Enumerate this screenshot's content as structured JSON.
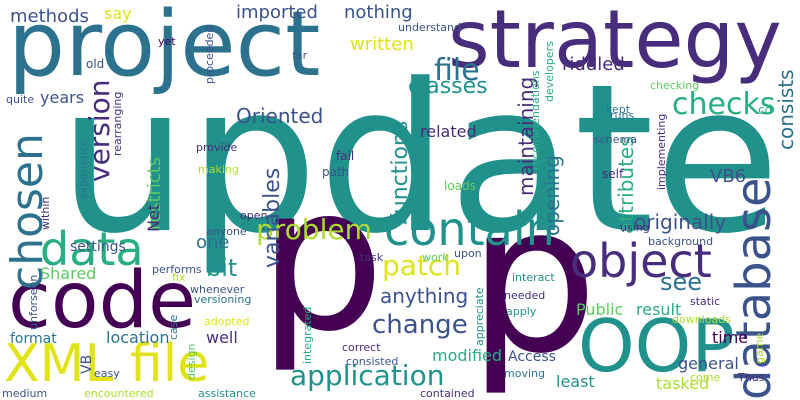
{
  "palette": [
    "#440154",
    "#472d7b",
    "#3b528b",
    "#2c728e",
    "#21918c",
    "#28ae80",
    "#5ec962",
    "#addc30",
    "#fde725"
  ],
  "words": [
    {
      "text": "update",
      "color": "#21918c"
    },
    {
      "text": "p",
      "color": "#440154"
    },
    {
      "text": "p",
      "color": "#440154"
    },
    {
      "text": "project",
      "color": "#2c728e"
    },
    {
      "text": "strategy",
      "color": "#472d7b"
    },
    {
      "text": "code",
      "color": "#440154"
    },
    {
      "text": "XML file",
      "color": "#dfe318"
    },
    {
      "text": "OOP",
      "color": "#21918c"
    },
    {
      "text": "database",
      "color": "#3b528b"
    },
    {
      "text": "contain",
      "color": "#21918c"
    },
    {
      "text": "object",
      "color": "#472d7b"
    },
    {
      "text": "chosen",
      "color": "#2c728e"
    },
    {
      "text": "data",
      "color": "#28ae80"
    },
    {
      "text": "application",
      "color": "#21918c"
    },
    {
      "text": "patch",
      "color": "#dfe318"
    },
    {
      "text": "change",
      "color": "#3b528b"
    },
    {
      "text": "problem",
      "color": "#addc30"
    },
    {
      "text": "version",
      "color": "#472d7b"
    },
    {
      "text": "checks",
      "color": "#28ae80"
    },
    {
      "text": "file",
      "color": "#2c728e"
    },
    {
      "text": "classes",
      "color": "#21918c"
    },
    {
      "text": "variables",
      "color": "#3b528b"
    },
    {
      "text": "functions",
      "color": "#21918c"
    },
    {
      "text": "anything",
      "color": "#3b528b"
    },
    {
      "text": "bit",
      "color": "#21918c"
    },
    {
      "text": "see",
      "color": "#2c728e"
    },
    {
      "text": "originally",
      "color": "#3b528b"
    },
    {
      "text": "maintaining",
      "color": "#472d7b"
    },
    {
      "text": "opening",
      "color": "#2c728e"
    },
    {
      "text": "attributes",
      "color": "#28ae80"
    },
    {
      "text": "consists",
      "color": "#2c728e"
    },
    {
      "text": "Oriented",
      "color": "#3b528b"
    },
    {
      "text": "riddled",
      "color": "#472d7b"
    },
    {
      "text": "written",
      "color": "#dfe318"
    },
    {
      "text": "imported",
      "color": "#3b528b"
    },
    {
      "text": "nothing",
      "color": "#3b528b"
    },
    {
      "text": "methods",
      "color": "#3b528b"
    },
    {
      "text": "say",
      "color": "#dfe318"
    },
    {
      "text": "years",
      "color": "#3b528b"
    },
    {
      "text": "restricts",
      "color": "#5ec962"
    },
    {
      "text": "Net",
      "color": "#472d7b"
    },
    {
      "text": "Shared",
      "color": "#5ec962"
    },
    {
      "text": "settings",
      "color": "#3b528b"
    },
    {
      "text": "one",
      "color": "#2c728e"
    },
    {
      "text": "VB6",
      "color": "#3b528b"
    },
    {
      "text": "related",
      "color": "#472d7b"
    },
    {
      "text": "Public",
      "color": "#5ec962"
    },
    {
      "text": "result",
      "color": "#28ae80"
    },
    {
      "text": "time",
      "color": "#440154"
    },
    {
      "text": "general",
      "color": "#3b528b"
    },
    {
      "text": "tasked",
      "color": "#addc30"
    },
    {
      "text": "least",
      "color": "#21918c"
    },
    {
      "text": "modified",
      "color": "#28ae80"
    },
    {
      "text": "Access",
      "color": "#3b528b"
    },
    {
      "text": "location",
      "color": "#2c728e"
    },
    {
      "text": "well",
      "color": "#472d7b"
    },
    {
      "text": "format",
      "color": "#2c728e"
    },
    {
      "text": "VB",
      "color": "#3b528b"
    },
    {
      "text": "fail",
      "color": "#472d7b"
    },
    {
      "text": "path",
      "color": "#3b528b"
    },
    {
      "text": "loads",
      "color": "#5ec962"
    },
    {
      "text": "self",
      "color": "#472d7b"
    },
    {
      "text": "schema",
      "color": "#3b528b"
    },
    {
      "text": "kept",
      "color": "#2c728e"
    },
    {
      "text": "cd",
      "color": "#28ae80"
    },
    {
      "text": "using",
      "color": "#472d7b"
    },
    {
      "text": "background",
      "color": "#3b528b"
    },
    {
      "text": "checking",
      "color": "#5ec962"
    },
    {
      "text": "implementing",
      "color": "#472d7b"
    },
    {
      "text": "runs",
      "color": "#2c728e"
    },
    {
      "text": "developers",
      "color": "#28ae80"
    },
    {
      "text": "recommendations",
      "color": "#28ae80"
    },
    {
      "text": "understand",
      "color": "#3b528b"
    },
    {
      "text": "far",
      "color": "#3b528b"
    },
    {
      "text": "yet",
      "color": "#440154"
    },
    {
      "text": "old",
      "color": "#3b528b"
    },
    {
      "text": "quite",
      "color": "#3b528b"
    },
    {
      "text": "rearranging",
      "color": "#472d7b"
    },
    {
      "text": "experience",
      "color": "#2c728e"
    },
    {
      "text": "within",
      "color": "#472d7b"
    },
    {
      "text": "proceeded",
      "color": "#3b528b"
    },
    {
      "text": "provide",
      "color": "#472d7b"
    },
    {
      "text": "making",
      "color": "#addc30"
    },
    {
      "text": "open",
      "color": "#472d7b"
    },
    {
      "text": "anyone",
      "color": "#3b528b"
    },
    {
      "text": "performs",
      "color": "#3b528b"
    },
    {
      "text": "fix",
      "color": "#addc30"
    },
    {
      "text": "whenever",
      "color": "#3b528b"
    },
    {
      "text": "versioning",
      "color": "#2c728e"
    },
    {
      "text": "adopted",
      "color": "#dfe318"
    },
    {
      "text": "design",
      "color": "#5ec962"
    },
    {
      "text": "case",
      "color": "#2c728e"
    },
    {
      "text": "integrated",
      "color": "#28ae80"
    },
    {
      "text": "task",
      "color": "#472d7b"
    },
    {
      "text": "work",
      "color": "#5ec962"
    },
    {
      "text": "upon",
      "color": "#3b528b"
    },
    {
      "text": "interact",
      "color": "#21918c"
    },
    {
      "text": "appreciate",
      "color": "#21918c"
    },
    {
      "text": "needed",
      "color": "#472d7b"
    },
    {
      "text": "apply",
      "color": "#21918c"
    },
    {
      "text": "correct",
      "color": "#472d7b"
    },
    {
      "text": "consisted",
      "color": "#3b528b"
    },
    {
      "text": "moving",
      "color": "#2c728e"
    },
    {
      "text": "contained",
      "color": "#472d7b"
    },
    {
      "text": "static",
      "color": "#472d7b"
    },
    {
      "text": "downloads",
      "color": "#addc30"
    },
    {
      "text": "game",
      "color": "#addc30"
    },
    {
      "text": "come",
      "color": "#addc30"
    },
    {
      "text": "Thus",
      "color": "#472d7b"
    },
    {
      "text": "unforseen",
      "color": "#3b528b"
    },
    {
      "text": "easy",
      "color": "#3b528b"
    },
    {
      "text": "medium",
      "color": "#3b528b"
    },
    {
      "text": "encountered",
      "color": "#addc30"
    },
    {
      "text": "assistance",
      "color": "#21918c"
    }
  ]
}
